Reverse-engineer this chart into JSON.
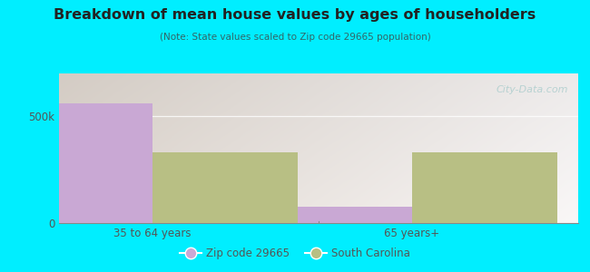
{
  "title": "Breakdown of mean house values by ages of householders",
  "subtitle": "(Note: State values scaled to Zip code 29665 population)",
  "categories": [
    "35 to 64 years",
    "65 years+"
  ],
  "zip_values": [
    560000,
    75000
  ],
  "state_values": [
    330000,
    330000
  ],
  "zip_color": "#c9a8d4",
  "state_color": "#b8bf84",
  "background_color": "#00eeff",
  "ylim": [
    0,
    700000
  ],
  "yticks": [
    0,
    500000
  ],
  "ytick_labels": [
    "0",
    "500k"
  ],
  "legend_labels": [
    "Zip code 29665",
    "South Carolina"
  ],
  "bar_width": 0.28,
  "watermark": "City-Data.com",
  "title_color": "#222222",
  "subtitle_color": "#336666",
  "tick_color": "#555555"
}
